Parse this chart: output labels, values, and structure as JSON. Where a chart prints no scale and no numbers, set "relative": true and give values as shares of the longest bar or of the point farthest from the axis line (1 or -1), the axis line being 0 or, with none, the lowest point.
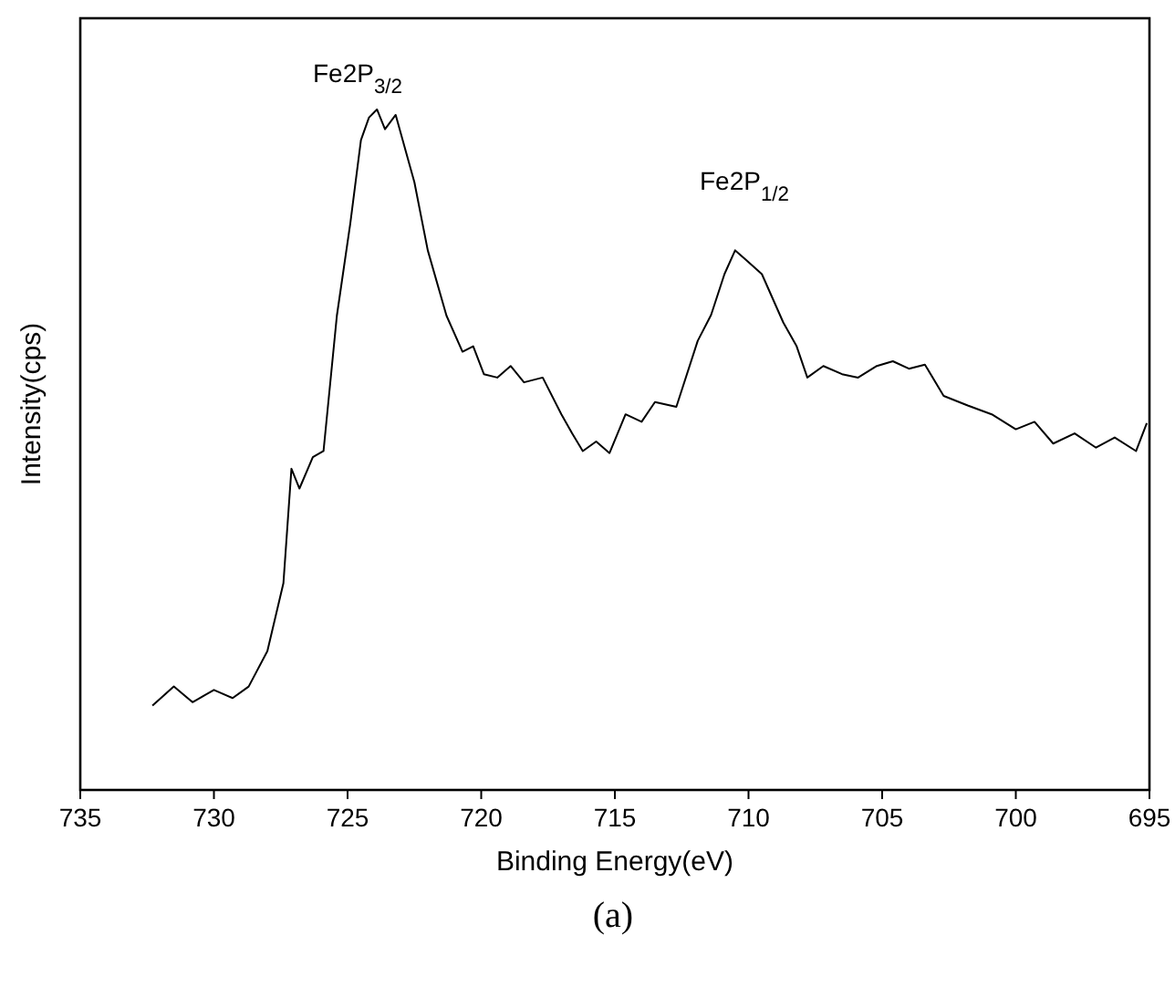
{
  "chart_data": {
    "type": "line",
    "relative": true,
    "xlabel": "Binding Energy(eV)",
    "ylabel": "Intensity(cps)",
    "xlim": [
      735,
      695
    ],
    "xticks": [
      735,
      730,
      725,
      720,
      715,
      710,
      705,
      700,
      695
    ],
    "tick_labels": "x",
    "grid": false,
    "line_style": "solid",
    "x": [
      732.3,
      731.5,
      730.8,
      730.0,
      729.3,
      728.7,
      728.0,
      727.4,
      727.1,
      726.8,
      726.3,
      725.9,
      725.4,
      724.9,
      724.5,
      724.2,
      723.9,
      723.6,
      723.2,
      722.5,
      722.0,
      721.3,
      720.7,
      720.3,
      719.9,
      719.4,
      718.9,
      718.4,
      717.7,
      717.0,
      716.6,
      716.2,
      715.7,
      715.2,
      714.6,
      714.0,
      713.5,
      712.7,
      711.9,
      711.4,
      710.9,
      710.5,
      710.1,
      709.5,
      708.7,
      708.2,
      707.8,
      707.2,
      706.5,
      705.9,
      705.2,
      704.6,
      704.0,
      703.4,
      702.7,
      701.8,
      700.9,
      700.0,
      699.3,
      698.6,
      697.8,
      697.0,
      696.3,
      695.5,
      695.1
    ],
    "series": [
      {
        "color": "#000000",
        "values": [
          0.124,
          0.152,
          0.129,
          0.147,
          0.135,
          0.152,
          0.204,
          0.304,
          0.472,
          0.443,
          0.489,
          0.498,
          0.697,
          0.832,
          0.955,
          0.988,
          1.0,
          0.971,
          0.992,
          0.893,
          0.793,
          0.697,
          0.644,
          0.652,
          0.611,
          0.606,
          0.623,
          0.599,
          0.606,
          0.552,
          0.524,
          0.498,
          0.512,
          0.495,
          0.552,
          0.541,
          0.57,
          0.563,
          0.66,
          0.698,
          0.758,
          0.793,
          0.779,
          0.758,
          0.687,
          0.652,
          0.606,
          0.623,
          0.611,
          0.606,
          0.623,
          0.63,
          0.619,
          0.625,
          0.579,
          0.565,
          0.552,
          0.53,
          0.541,
          0.509,
          0.524,
          0.503,
          0.518,
          0.498,
          0.539
        ]
      }
    ],
    "annotations": [
      "Fe2P$_{3/2}$",
      "Fe2P$_{1/2}$",
      "(a)"
    ]
  }
}
